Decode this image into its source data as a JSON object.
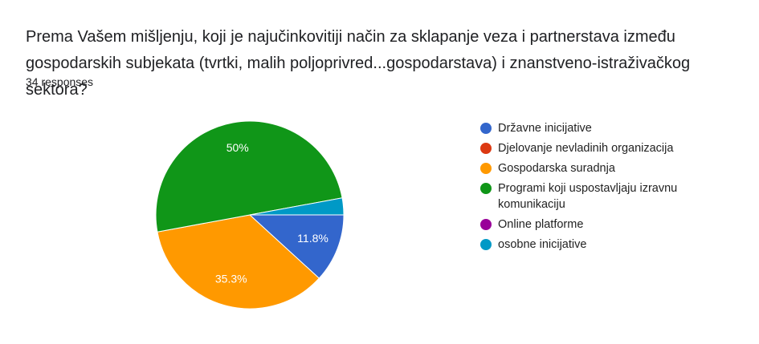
{
  "chart_data": {
    "type": "pie",
    "title": "Prema Vašem mišljenju, koji je najučinkovitiji način za sklapanje veza i partnerstava između gospodarskih subjekata (tvrtki, malih poljoprivred...gospodarstava) i znanstveno-istraživačkog sektora?",
    "subtitle": "34 responses",
    "categories": [
      "Državne inicijative",
      "Djelovanje nevladinih organizacija",
      "Gospodarska suradnja",
      "Programi koji uspostavljaju izravnu komunikaciju",
      "Online platforme",
      "osobne inicijative"
    ],
    "values": [
      11.8,
      0,
      35.3,
      50,
      0,
      2.9
    ],
    "value_labels": [
      "11.8%",
      null,
      "35.3%",
      "50%",
      null,
      null
    ],
    "colors": [
      "#3366cc",
      "#dc3912",
      "#ff9900",
      "#109618",
      "#990099",
      "#0099c6"
    ],
    "legend": "right"
  }
}
